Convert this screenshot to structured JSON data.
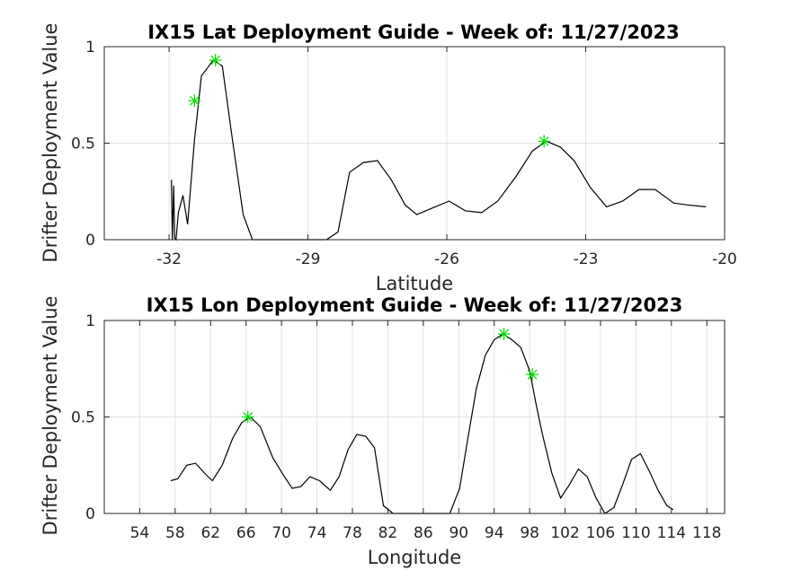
{
  "chart_data": [
    {
      "type": "line",
      "title": "IX15 Lat Deployment Guide - Week of: 11/27/2023",
      "xlabel": "Latitude",
      "ylabel": "Drifter Deployment Value",
      "xlim": [
        -33.4,
        -20
      ],
      "ylim": [
        0,
        1
      ],
      "xticks": [
        -32,
        -29,
        -26,
        -23,
        -20
      ],
      "yticks": [
        0,
        0.5,
        1
      ],
      "ytick_labels": [
        "0",
        "0.5",
        "1"
      ],
      "grid": true,
      "series": [
        {
          "x": [
            -31.95,
            -31.93,
            -31.9,
            -31.88,
            -31.85,
            -31.8,
            -31.7,
            -31.6,
            -31.45,
            -31.3,
            -31.2,
            -31.05,
            -30.85,
            -30.65,
            -30.4,
            -30.2,
            -29.6,
            -28.6,
            -28.35,
            -28.1,
            -27.8,
            -27.5,
            -27.2,
            -26.9,
            -26.65,
            -26.35,
            -25.95,
            -25.6,
            -25.25,
            -24.9,
            -24.5,
            -24.15,
            -23.85,
            -23.55,
            -23.25,
            -22.9,
            -22.55,
            -22.2,
            -21.85,
            -21.5,
            -21.1,
            -20.8,
            -20.4
          ],
          "y": [
            0.31,
            0.0,
            0.28,
            0.01,
            0.0,
            0.14,
            0.23,
            0.08,
            0.52,
            0.85,
            0.88,
            0.93,
            0.9,
            0.55,
            0.13,
            0.0,
            0.0,
            0.0,
            0.04,
            0.35,
            0.4,
            0.41,
            0.31,
            0.18,
            0.13,
            0.16,
            0.2,
            0.15,
            0.14,
            0.2,
            0.33,
            0.46,
            0.51,
            0.48,
            0.41,
            0.27,
            0.17,
            0.2,
            0.26,
            0.26,
            0.19,
            0.18,
            0.17
          ]
        }
      ],
      "markers": [
        {
          "x": -31.45,
          "y": 0.72
        },
        {
          "x": -31.0,
          "y": 0.93
        },
        {
          "x": -23.9,
          "y": 0.51
        }
      ],
      "line_color": "#000000",
      "marker_color": "#00e000"
    },
    {
      "type": "line",
      "title": "IX15 Lon Deployment Guide - Week of: 11/27/2023",
      "xlabel": "Longitude",
      "ylabel": "Drifter Deployment Value",
      "xlim": [
        50,
        120
      ],
      "ylim": [
        0,
        1
      ],
      "xticks": [
        54,
        58,
        62,
        66,
        70,
        74,
        78,
        82,
        86,
        90,
        94,
        98,
        102,
        106,
        110,
        114,
        118
      ],
      "yticks": [
        0,
        0.5,
        1
      ],
      "ytick_labels": [
        "0",
        "0.5",
        "1"
      ],
      "grid": true,
      "series": [
        {
          "x": [
            57.5,
            58.3,
            59.3,
            60.3,
            61.5,
            62.2,
            63.3,
            64.5,
            65.5,
            66.5,
            67.6,
            69.0,
            70.2,
            71.2,
            72.2,
            73.2,
            74.3,
            75.5,
            76.5,
            77.5,
            78.5,
            79.5,
            80.5,
            81.5,
            82.6,
            83.5,
            89.0,
            90.1,
            91.0,
            92.0,
            93.0,
            94.0,
            95.0,
            96.0,
            97.0,
            98.0,
            98.8,
            99.5,
            100.5,
            101.5,
            102.5,
            103.5,
            104.5,
            105.5,
            106.5,
            107.5,
            108.5,
            109.5,
            110.5,
            111.5,
            112.5,
            113.5,
            114.2
          ],
          "y": [
            0.17,
            0.18,
            0.25,
            0.26,
            0.2,
            0.17,
            0.25,
            0.39,
            0.47,
            0.5,
            0.45,
            0.29,
            0.2,
            0.13,
            0.14,
            0.19,
            0.17,
            0.12,
            0.19,
            0.33,
            0.41,
            0.4,
            0.34,
            0.04,
            0.0,
            0.0,
            0.0,
            0.13,
            0.38,
            0.65,
            0.82,
            0.9,
            0.93,
            0.9,
            0.86,
            0.74,
            0.55,
            0.4,
            0.21,
            0.08,
            0.15,
            0.23,
            0.19,
            0.08,
            0.0,
            0.03,
            0.15,
            0.28,
            0.31,
            0.22,
            0.12,
            0.04,
            0.02
          ]
        }
      ],
      "markers": [
        {
          "x": 66.2,
          "y": 0.5
        },
        {
          "x": 95.1,
          "y": 0.93
        },
        {
          "x": 98.3,
          "y": 0.72
        }
      ],
      "line_color": "#000000",
      "marker_color": "#00e000"
    }
  ]
}
